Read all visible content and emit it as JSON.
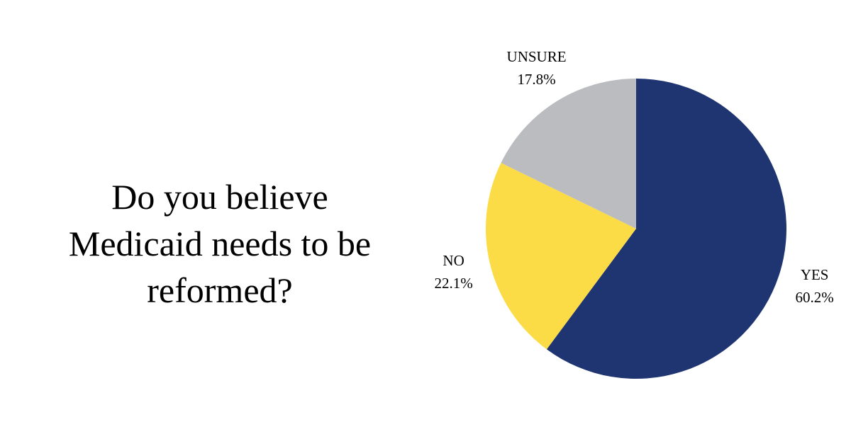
{
  "chart_data": {
    "type": "pie",
    "title": "Do you believe Medicaid needs to be reformed?",
    "categories": [
      "YES",
      "NO",
      "UNSURE"
    ],
    "values": [
      60.2,
      22.1,
      17.8
    ],
    "value_labels": [
      "60.2%",
      "22.1%",
      "17.8%"
    ],
    "colors": [
      "#1f3572",
      "#fcdc46",
      "#bbbcc0"
    ]
  }
}
